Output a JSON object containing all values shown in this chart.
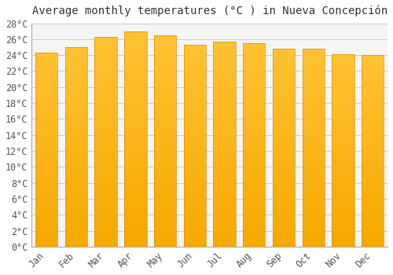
{
  "title": "Average monthly temperatures (°C ) in Nueva Concepción",
  "months": [
    "Jan",
    "Feb",
    "Mar",
    "Apr",
    "May",
    "Jun",
    "Jul",
    "Aug",
    "Sep",
    "Oct",
    "Nov",
    "Dec"
  ],
  "values": [
    24.3,
    25.0,
    26.3,
    27.0,
    26.5,
    25.3,
    25.7,
    25.5,
    24.8,
    24.8,
    24.1,
    24.0
  ],
  "bar_color_top": "#FFC133",
  "bar_color_bottom": "#F5A800",
  "bar_edge_color": "#E09000",
  "ylim": [
    0,
    28
  ],
  "ytick_step": 2,
  "background_color": "#ffffff",
  "plot_bg_color": "#f5f5f5",
  "grid_color": "#cccccc",
  "title_fontsize": 10,
  "tick_fontsize": 8.5,
  "tick_color": "#555555",
  "title_color": "#333333"
}
